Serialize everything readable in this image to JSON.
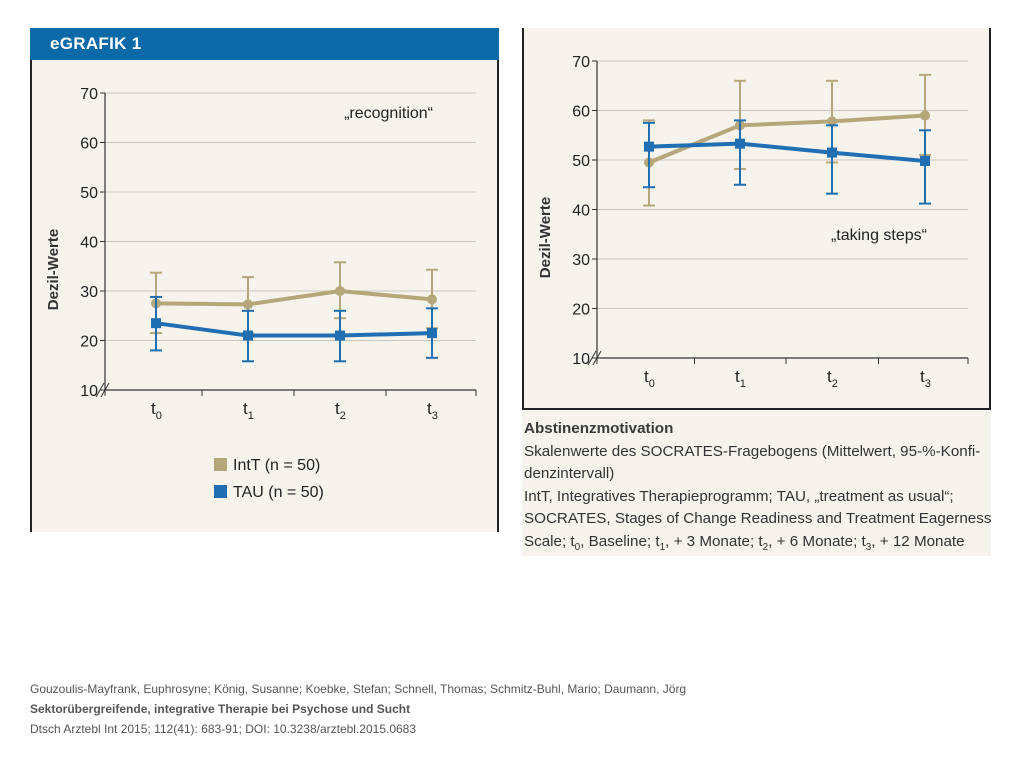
{
  "header": {
    "title": "eGRAFIK 1"
  },
  "chart_data": [
    {
      "type": "line",
      "title": "„recognition“",
      "ylabel": "Dezil-Werte",
      "xlabel": "",
      "categories": [
        "t0",
        "t1",
        "t2",
        "t3"
      ],
      "category_labels": [
        {
          "base": "t",
          "sub": "0"
        },
        {
          "base": "t",
          "sub": "1"
        },
        {
          "base": "t",
          "sub": "2"
        },
        {
          "base": "t",
          "sub": "3"
        }
      ],
      "yticks": [
        10,
        20,
        30,
        40,
        50,
        60,
        70
      ],
      "ylim": [
        10,
        70
      ],
      "grid": true,
      "axis_break": true,
      "series": [
        {
          "name": "IntT (n = 50)",
          "color": "#b5a77a",
          "values": [
            27.5,
            27.3,
            30.0,
            28.3
          ],
          "ci_low": [
            21.5,
            21.5,
            24.5,
            22.5
          ],
          "ci_high": [
            33.7,
            32.8,
            35.8,
            34.3
          ]
        },
        {
          "name": "TAU (n = 50)",
          "color": "#1f6fb2",
          "values": [
            23.5,
            21.0,
            21.0,
            21.5
          ],
          "ci_low": [
            18.0,
            15.8,
            15.8,
            16.5
          ],
          "ci_high": [
            28.8,
            26.0,
            26.0,
            26.5
          ]
        }
      ]
    },
    {
      "type": "line",
      "title": "„taking steps“",
      "ylabel": "Dezil-Werte",
      "xlabel": "",
      "categories": [
        "t0",
        "t1",
        "t2",
        "t3"
      ],
      "category_labels": [
        {
          "base": "t",
          "sub": "0"
        },
        {
          "base": "t",
          "sub": "1"
        },
        {
          "base": "t",
          "sub": "2"
        },
        {
          "base": "t",
          "sub": "3"
        }
      ],
      "yticks": [
        10,
        20,
        30,
        40,
        50,
        60,
        70
      ],
      "ylim": [
        10,
        70
      ],
      "grid": true,
      "axis_break": true,
      "series": [
        {
          "name": "IntT (n = 50)",
          "color": "#b5a77a",
          "values": [
            49.5,
            57.0,
            57.8,
            59.0
          ],
          "ci_low": [
            40.8,
            48.2,
            49.5,
            51.0
          ],
          "ci_high": [
            58.0,
            66.0,
            66.0,
            67.2
          ]
        },
        {
          "name": "TAU (n = 50)",
          "color": "#1f6fb2",
          "values": [
            52.7,
            53.3,
            51.5,
            49.8
          ],
          "ci_low": [
            44.5,
            45.0,
            43.2,
            41.2
          ],
          "ci_high": [
            57.5,
            58.0,
            57.0,
            56.0
          ]
        }
      ]
    }
  ],
  "legend": [
    {
      "label": "IntT (n = 50)",
      "color": "#b5a77a"
    },
    {
      "label": "TAU (n = 50)",
      "color": "#1f6fb2"
    }
  ],
  "caption": {
    "title": "Abstinenzmotivation",
    "line1": "Skalenwerte des SOCRATES-Fragebogens (Mittelwert, 95-%-Konfi-",
    "line2": "denzintervall)",
    "line3": "IntT, Integratives Therapieprogramm; TAU, „treatment as usual“;",
    "line4": "SOCRATES, Stages of Change Readiness and Treatment Eagerness",
    "line5_prefix": "Scale; t",
    "line5_sub0": "0",
    "line5_a": ", Baseline; t",
    "line5_sub1": "1",
    "line5_b": ", + 3 Monate; t",
    "line5_sub2": "2",
    "line5_c": ", + 6 Monate; t",
    "line5_sub3": "3",
    "line5_d": ", + 12 Monate"
  },
  "citation": {
    "authors": "Gouzoulis-Mayfrank, Euphrosyne; König, Susanne; Koebke, Stefan; Schnell, Thomas; Schmitz-Buhl, Mario; Daumann, Jörg",
    "title": "Sektorübergreifende, integrative Therapie bei Psychose und Sucht",
    "source": "Dtsch Arztebl Int 2015; 112(41): 683-91; DOI: 10.3238/arztebl.2015.0683"
  }
}
